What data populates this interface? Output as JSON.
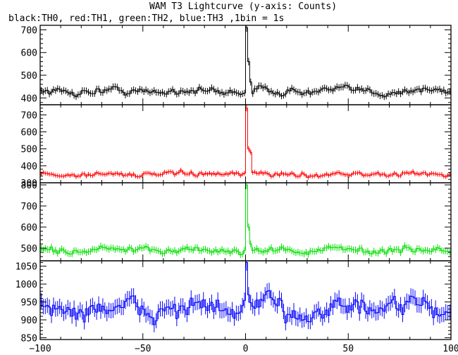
{
  "chart_data": {
    "type": "line",
    "title": "WAM T3 Lightcurve (y-axis: Counts)",
    "subtitle": "black:TH0, red:TH1, green:TH2, blue:TH3 ,1bin = 1s",
    "xlabel": "",
    "ylabel": "",
    "xlim": [
      -100,
      100
    ],
    "x_ticks": [
      -100,
      -50,
      0,
      50,
      100
    ],
    "grid": false,
    "panels": [
      {
        "series": "TH0",
        "color": "#000000",
        "ylim": [
          370,
          720
        ],
        "y_ticks": [
          400,
          500,
          600,
          700
        ],
        "baseline": 430,
        "noise": 18,
        "peak": [
          {
            "x": 0,
            "y": 710
          },
          {
            "x": 1,
            "y": 560
          },
          {
            "x": 2,
            "y": 470
          }
        ]
      },
      {
        "series": "TH1",
        "color": "#ff0000",
        "ylim": [
          300,
          760
        ],
        "y_ticks": [
          300,
          400,
          500,
          600,
          700
        ],
        "baseline": 350,
        "noise": 15,
        "peak": [
          {
            "x": 0,
            "y": 740
          },
          {
            "x": 1,
            "y": 500
          },
          {
            "x": 2,
            "y": 480
          }
        ]
      },
      {
        "series": "TH2",
        "color": "#00e000",
        "ylim": [
          440,
          810
        ],
        "y_ticks": [
          500,
          600,
          700,
          800
        ],
        "baseline": 490,
        "noise": 17,
        "peak": [
          {
            "x": 0,
            "y": 800
          },
          {
            "x": 1,
            "y": 600
          },
          {
            "x": 2,
            "y": 520
          }
        ]
      },
      {
        "series": "TH3",
        "color": "#0000ff",
        "ylim": [
          845,
          1065
        ],
        "y_ticks": [
          850,
          900,
          950,
          1000,
          1050
        ],
        "baseline": 930,
        "noise": 32,
        "peak": [
          {
            "x": 0,
            "y": 1060
          },
          {
            "x": 1,
            "y": 970
          }
        ]
      }
    ]
  }
}
